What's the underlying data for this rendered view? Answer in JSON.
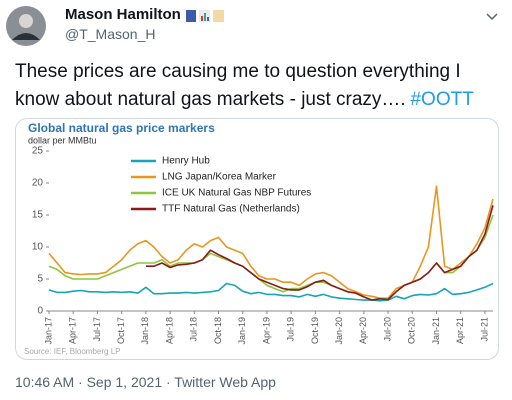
{
  "tweet": {
    "name": "Mason Hamilton",
    "handle": "@T_Mason_H",
    "text": "These prices are causing me to question everything I know about natural gas markets - just crazy….",
    "hashtag": "#OOTT",
    "timestamp": "10:46 AM · Sep 1, 2021 · Twitter Web App"
  },
  "chart_data": {
    "type": "line",
    "title": "Global natural gas price markers",
    "y_label": "dollar per MMBtu",
    "source": "Source: IEF, Bloomberg LP",
    "categories": [
      "Jan-17",
      null,
      null,
      "Apr-17",
      null,
      null,
      "Jul-17",
      null,
      null,
      "Oct-17",
      null,
      null,
      "Jan-18",
      null,
      null,
      "Apr-18",
      null,
      null,
      "Jul-18",
      null,
      null,
      "Oct-18",
      null,
      null,
      "Jan-19",
      null,
      null,
      "Apr-19",
      null,
      null,
      "Jul-19",
      null,
      null,
      "Oct-19",
      null,
      null,
      "Jan-20",
      null,
      null,
      "Apr-20",
      null,
      null,
      "Jul-20",
      null,
      null,
      "Oct-20",
      null,
      null,
      "Jan-21",
      null,
      null,
      "Apr-21",
      null,
      null,
      "Jul-21",
      null
    ],
    "ylim": [
      0,
      25
    ],
    "yticks": [
      0,
      5,
      10,
      15,
      20,
      25
    ],
    "legend": "top-left",
    "series": [
      {
        "name": "Henry Hub",
        "color": "#1aa3b8",
        "values": [
          3.3,
          2.9,
          2.9,
          3.1,
          3.2,
          3.0,
          3.0,
          2.9,
          3.0,
          2.9,
          3.0,
          2.8,
          3.7,
          2.7,
          2.7,
          2.8,
          2.8,
          2.9,
          2.8,
          2.9,
          3.0,
          3.2,
          4.3,
          4.0,
          3.1,
          2.7,
          2.9,
          2.6,
          2.6,
          2.4,
          2.4,
          2.2,
          2.6,
          2.3,
          2.6,
          2.2,
          2.0,
          1.9,
          1.8,
          1.7,
          1.7,
          1.6,
          1.7,
          2.3,
          1.9,
          2.4,
          2.6,
          2.5,
          2.7,
          3.5,
          2.6,
          2.7,
          2.9,
          3.3,
          3.7,
          4.3
        ]
      },
      {
        "name": "LNG Japan/Korea Marker",
        "color": "#e8961e",
        "values": [
          9.0,
          7.5,
          6.0,
          5.8,
          5.7,
          5.8,
          5.8,
          6.0,
          7.0,
          8.0,
          9.5,
          10.5,
          11.0,
          10.0,
          8.5,
          7.5,
          8.0,
          9.5,
          10.5,
          10.0,
          11.0,
          11.5,
          10.0,
          9.5,
          9.0,
          7.0,
          5.5,
          5.0,
          5.0,
          4.5,
          4.5,
          4.0,
          5.0,
          5.8,
          6.0,
          5.5,
          4.5,
          3.5,
          3.0,
          2.5,
          2.3,
          2.0,
          2.0,
          3.5,
          4.0,
          4.5,
          7.0,
          10.0,
          19.5,
          7.0,
          6.5,
          7.5,
          8.5,
          10.5,
          13.0,
          17.5
        ]
      },
      {
        "name": "ICE UK Natural Gas NBP Futures",
        "color": "#8cc63e",
        "values": [
          7.0,
          6.5,
          5.5,
          5.0,
          5.0,
          5.0,
          5.0,
          5.5,
          6.0,
          6.5,
          7.0,
          7.5,
          7.5,
          7.5,
          8.0,
          7.0,
          7.5,
          7.5,
          7.5,
          8.0,
          9.0,
          8.5,
          8.0,
          7.5,
          7.0,
          6.0,
          5.0,
          4.0,
          3.5,
          3.0,
          3.5,
          3.5,
          4.0,
          4.5,
          4.5,
          4.0,
          3.5,
          3.0,
          2.8,
          2.2,
          1.7,
          2.0,
          1.8,
          3.0,
          4.0,
          4.5,
          5.0,
          6.0,
          7.5,
          6.0,
          6.0,
          7.0,
          8.5,
          9.5,
          11.5,
          15.0
        ]
      },
      {
        "name": "TTF Natural Gas (Netherlands)",
        "color": "#8b1a1a",
        "values": [
          null,
          null,
          null,
          null,
          null,
          null,
          null,
          null,
          null,
          null,
          null,
          null,
          7.0,
          7.0,
          7.5,
          6.8,
          7.2,
          7.3,
          7.5,
          8.0,
          9.5,
          8.8,
          8.2,
          7.5,
          7.0,
          6.0,
          5.0,
          4.5,
          4.0,
          3.5,
          3.3,
          3.3,
          3.8,
          4.5,
          4.8,
          4.0,
          3.5,
          3.0,
          2.8,
          2.2,
          1.7,
          1.9,
          1.8,
          3.0,
          4.0,
          4.5,
          5.0,
          6.0,
          7.5,
          6.0,
          6.5,
          7.0,
          8.5,
          9.5,
          12.0,
          16.5
        ]
      }
    ]
  }
}
